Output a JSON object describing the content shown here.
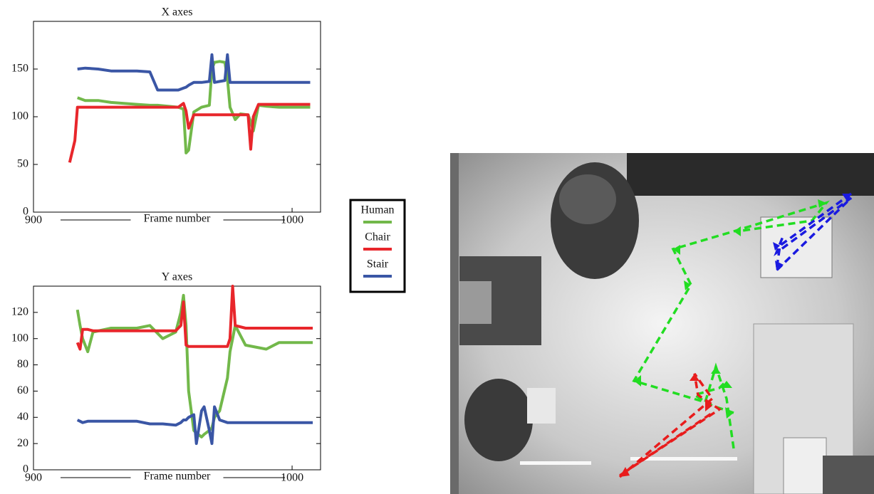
{
  "chart_data": [
    {
      "type": "line",
      "title": "X axes",
      "x_label": "Frame number",
      "x": [
        914,
        916,
        917,
        920,
        925,
        930,
        935,
        940,
        945,
        948,
        952,
        956,
        958,
        959,
        960,
        962,
        965,
        968,
        969,
        970,
        972,
        974,
        975,
        976,
        978,
        980,
        983,
        984,
        985,
        987,
        990,
        995,
        1000,
        1007
      ],
      "series": [
        {
          "name": "Human",
          "color": "#72b84a",
          "values": [
            null,
            null,
            120,
            117,
            117,
            115,
            114,
            113,
            112,
            112,
            111,
            110,
            108,
            62,
            65,
            105,
            110,
            112,
            150,
            157,
            158,
            157,
            140,
            110,
            97,
            103,
            102,
            95,
            85,
            112,
            111,
            110,
            110,
            110
          ]
        },
        {
          "name": "Chair",
          "color": "#e8262b",
          "values": [
            52,
            75,
            110,
            110,
            110,
            110,
            110,
            110,
            110,
            110,
            110,
            110,
            114,
            106,
            88,
            102,
            102,
            102,
            102,
            102,
            102,
            102,
            102,
            102,
            102,
            102,
            102,
            66,
            100,
            113,
            113,
            113,
            113,
            113
          ]
        },
        {
          "name": "Stair",
          "color": "#3a56a5",
          "values": [
            null,
            null,
            150,
            151,
            150,
            148,
            148,
            148,
            147,
            128,
            128,
            128,
            130,
            131,
            133,
            136,
            136,
            137,
            165,
            136,
            137,
            138,
            165,
            136,
            136,
            136,
            136,
            136,
            136,
            136,
            136,
            136,
            136,
            136
          ]
        }
      ],
      "xlim": [
        900,
        1011
      ],
      "xticks": [
        900,
        1000
      ],
      "ylim": [
        0,
        200
      ],
      "yticks": [
        0,
        50,
        100,
        150
      ]
    },
    {
      "type": "line",
      "title": "Y axes",
      "x_label": "Frame number",
      "x": [
        917,
        918,
        919,
        921,
        923,
        930,
        940,
        945,
        950,
        955,
        957,
        958,
        959,
        960,
        962,
        963,
        965,
        966,
        968,
        969,
        970,
        972,
        975,
        976,
        977,
        978,
        982,
        990,
        995,
        1008
      ],
      "series": [
        {
          "name": "Human",
          "color": "#72b84a",
          "values": [
            122,
            110,
            100,
            90,
            105,
            108,
            108,
            110,
            100,
            105,
            120,
            133,
            110,
            60,
            30,
            28,
            25,
            27,
            30,
            32,
            40,
            45,
            70,
            90,
            100,
            110,
            95,
            92,
            97,
            97
          ]
        },
        {
          "name": "Chair",
          "color": "#e8262b",
          "values": [
            97,
            92,
            107,
            107,
            106,
            106,
            106,
            106,
            106,
            106,
            110,
            128,
            95,
            94,
            94,
            94,
            94,
            94,
            94,
            94,
            94,
            94,
            94,
            100,
            140,
            110,
            108,
            108,
            108,
            108
          ]
        },
        {
          "name": "Stair",
          "color": "#3a56a5",
          "values": [
            38,
            37,
            36,
            37,
            37,
            37,
            37,
            35,
            35,
            34,
            36,
            38,
            38,
            40,
            42,
            20,
            45,
            48,
            30,
            20,
            48,
            38,
            36,
            36,
            36,
            36,
            36,
            36,
            36,
            36
          ]
        }
      ],
      "xlim": [
        900,
        1011
      ],
      "xticks": [
        900,
        1000
      ],
      "ylim": [
        0,
        140
      ],
      "yticks": [
        0,
        20,
        40,
        60,
        80,
        100,
        120
      ]
    }
  ]
}
